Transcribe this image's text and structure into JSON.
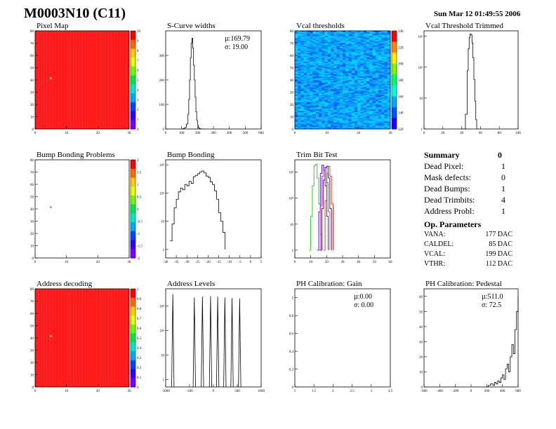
{
  "header": {
    "title": "M0003N10 (C11)",
    "timestamp": "Sun Mar 12 01:49:55 2006"
  },
  "palette": {
    "axis": "#000000",
    "frame": "#000000",
    "histogram": "#000000",
    "red_map": "#ff1a1a"
  },
  "colorbar": [
    "#ff0000",
    "#ff6a00",
    "#ffcc00",
    "#e6ff00",
    "#66ff00",
    "#00e64d",
    "#00e6c8",
    "#00aaff",
    "#0044ff",
    "#3300ff",
    "#7a00ff"
  ],
  "vcal_colorbar": [
    "#ff0000",
    "#ff8800",
    "#ffee00",
    "#77ff00",
    "#00ff66",
    "#00ffdd",
    "#00aaff",
    "#0050ff",
    "#2200ff"
  ],
  "summary": {
    "title": "Summary",
    "total": "0",
    "rows": [
      {
        "label": "Dead Pixel:",
        "value": "1"
      },
      {
        "label": "Mask defects:",
        "value": "0"
      },
      {
        "label": "Dead Bumps:",
        "value": "1"
      },
      {
        "label": "Dead Trimbits:",
        "value": "4"
      },
      {
        "label": "Address Probl:",
        "value": "1"
      }
    ],
    "op_title": "Op. Parameters",
    "op_rows": [
      {
        "label": "VANA:",
        "value": "177 DAC"
      },
      {
        "label": "CALDEL:",
        "value": "85 DAC"
      },
      {
        "label": "VCAL:",
        "value": "199 DAC"
      },
      {
        "label": "VTHR:",
        "value": "112 DAC"
      }
    ]
  },
  "chart_data": [
    {
      "id": "pixel_map",
      "type": "heatmap",
      "title": "Pixel Map",
      "xlim": [
        0,
        32
      ],
      "ylim": [
        0,
        80
      ],
      "xticks": [
        "0",
        "10",
        "20",
        "30"
      ],
      "yticks": [
        "0",
        "10",
        "20",
        "30",
        "40",
        "50",
        "60",
        "70",
        "80"
      ],
      "zticks": [
        "0",
        "1",
        "2",
        "3",
        "4",
        "5",
        "6",
        "7",
        "8",
        "9",
        "10"
      ],
      "fill": "uniform red (10)",
      "dead_pixel": [
        5,
        42
      ]
    },
    {
      "id": "scurve_widths",
      "type": "line",
      "title": "S-Curve widths",
      "xlim": [
        0,
        600
      ],
      "ylim": [
        0,
        400
      ],
      "xticks": [
        "0",
        "100",
        "200",
        "300",
        "400",
        "500",
        "600"
      ],
      "yticks": [
        "0",
        "100",
        "200",
        "300"
      ],
      "stats": [
        "µ:169.79",
        "σ: 19.00"
      ],
      "x": [
        100,
        110,
        120,
        130,
        140,
        145,
        150,
        155,
        160,
        165,
        170,
        175,
        180,
        185,
        190,
        195,
        200,
        205,
        210,
        215,
        220,
        230,
        240
      ],
      "y": [
        0,
        2,
        6,
        20,
        60,
        120,
        200,
        290,
        350,
        370,
        330,
        260,
        200,
        130,
        70,
        35,
        15,
        6,
        3,
        1,
        0,
        0,
        0
      ]
    },
    {
      "id": "vcal_thresholds",
      "type": "heatmap",
      "title": "Vcal thresholds",
      "xlim": [
        0,
        32
      ],
      "ylim": [
        0,
        80
      ],
      "xticks": [
        "0",
        "10",
        "20",
        "30"
      ],
      "yticks": [
        "0",
        "10",
        "20",
        "30",
        "40",
        "50",
        "60",
        "70",
        "80"
      ],
      "zticks": [
        "120",
        "140",
        "160",
        "180",
        "200",
        "220",
        "240"
      ]
    },
    {
      "id": "vcal_trimmed",
      "type": "line",
      "title": "Vcal Threshold Trimmed",
      "xlim": [
        0,
        100
      ],
      "ylim_log": [
        1,
        1500
      ],
      "xticks": [
        "0",
        "20",
        "40",
        "60",
        "80",
        "100"
      ],
      "yticks": [
        "1",
        "10",
        "10²",
        "10³"
      ],
      "x": [
        40,
        42,
        44,
        46,
        47,
        48,
        49,
        50,
        51,
        52,
        53,
        54,
        55,
        56,
        58
      ],
      "y": [
        0,
        0,
        3,
        80,
        400,
        900,
        1200,
        1100,
        600,
        200,
        40,
        8,
        2,
        0,
        0
      ]
    },
    {
      "id": "bump_bonding_problems",
      "type": "heatmap",
      "title": "Bump Bonding Problems",
      "xlim": [
        0,
        32
      ],
      "ylim": [
        0,
        80
      ],
      "xticks": [
        "0",
        "10",
        "20",
        "30"
      ],
      "yticks": [
        "0",
        "10",
        "20",
        "30",
        "40",
        "50",
        "60",
        "70",
        "80"
      ],
      "zticks": [
        "-2",
        "-1.5",
        "-1",
        "-0.5",
        "0",
        "0.5",
        "1",
        "1.5",
        "2"
      ],
      "problem_pixel": [
        5,
        42
      ]
    },
    {
      "id": "bump_bonding",
      "type": "line",
      "title": "Bump Bonding",
      "xlim": [
        -40,
        5
      ],
      "ylim_log": [
        0.5,
        1500
      ],
      "xticks": [
        "-40",
        "-35",
        "-30",
        "-25",
        "-20",
        "-15",
        "-10",
        "-5",
        "0",
        "5"
      ],
      "yticks": [
        "1",
        "10",
        "10²",
        "10³"
      ],
      "x": [
        -38,
        -37,
        -36,
        -35,
        -34,
        -33,
        -32,
        -31,
        -30,
        -29,
        -28,
        -27,
        -26,
        -25,
        -24,
        -23,
        -22,
        -21,
        -20,
        -19,
        -18,
        -17,
        -16,
        -15,
        -14,
        -13,
        -12
      ],
      "y": [
        2,
        8,
        30,
        60,
        110,
        150,
        130,
        200,
        180,
        260,
        220,
        380,
        420,
        480,
        560,
        600,
        520,
        400,
        360,
        250,
        200,
        120,
        60,
        20,
        10,
        4,
        1
      ]
    },
    {
      "id": "trim_bit_test",
      "type": "line",
      "title": "Trim Bit Test",
      "xlim": [
        0,
        60
      ],
      "ylim_log": [
        0.5,
        3000
      ],
      "xticks": [
        "0",
        "10",
        "20",
        "30",
        "40",
        "50",
        "60"
      ],
      "yticks": [
        "1",
        "10",
        "10²",
        "10³"
      ],
      "series": [
        {
          "color": "#00c000",
          "x": [
            9,
            10,
            11,
            12,
            13,
            14,
            15,
            16,
            17
          ],
          "y": [
            1,
            20,
            300,
            1800,
            2000,
            600,
            60,
            4,
            1
          ]
        },
        {
          "color": "#0000ff",
          "x": [
            14,
            15,
            16,
            17,
            18,
            19,
            20,
            21
          ],
          "y": [
            1,
            30,
            900,
            1900,
            1200,
            300,
            20,
            1
          ]
        },
        {
          "color": "#ff00ff",
          "x": [
            15,
            16,
            17,
            18,
            19,
            20,
            21,
            22
          ],
          "y": [
            1,
            50,
            700,
            1600,
            1500,
            400,
            30,
            1
          ]
        },
        {
          "color": "#000000",
          "x": [
            16,
            17,
            18,
            19,
            20,
            21,
            22,
            23
          ],
          "y": [
            1,
            40,
            500,
            1500,
            1700,
            600,
            40,
            1
          ]
        },
        {
          "color": "#ff0000",
          "x": [
            18,
            19,
            20,
            21,
            22,
            23,
            24
          ],
          "y": [
            1,
            80,
            900,
            1700,
            700,
            60,
            1
          ]
        }
      ]
    },
    {
      "id": "address_decoding",
      "type": "heatmap",
      "title": "Address decoding",
      "xlim": [
        0,
        32
      ],
      "ylim": [
        0,
        80
      ],
      "xticks": [
        "0",
        "10",
        "20",
        "30"
      ],
      "yticks": [
        "0",
        "10",
        "20",
        "30",
        "40",
        "50",
        "60",
        "70",
        "80"
      ],
      "zticks": [
        "0",
        "0.1",
        "0.2",
        "0.3",
        "0.4",
        "0.5",
        "0.6",
        "0.7",
        "0.8",
        "0.9",
        "1"
      ],
      "fill": "uniform red (1)",
      "problem_pixel": [
        5,
        42
      ]
    },
    {
      "id": "address_levels",
      "type": "line",
      "title": "Address Levels",
      "xlim": [
        -1000,
        1000
      ],
      "ylim_log": [
        0.5,
        5000
      ],
      "xticks": [
        "-1000",
        "-500",
        "0",
        "500",
        "1000"
      ],
      "yticks": [
        "1",
        "10",
        "10²",
        "10³"
      ],
      "peaks": [
        {
          "x": -850,
          "h": 3000
        },
        {
          "x": -400,
          "h": 2200
        },
        {
          "x": -230,
          "h": 2400
        },
        {
          "x": -60,
          "h": 2500
        },
        {
          "x": 90,
          "h": 2400
        },
        {
          "x": 240,
          "h": 2200
        },
        {
          "x": 390,
          "h": 2100
        },
        {
          "x": 550,
          "h": 2000
        }
      ]
    },
    {
      "id": "ph_gain",
      "type": "line",
      "title": "PH Calibration: Gain",
      "xlim": [
        1,
        3.5
      ],
      "ylim": [
        0,
        1.1
      ],
      "xticks": [
        "1",
        "1.5",
        "2",
        "2.5",
        "3",
        "3.5"
      ],
      "yticks": [
        "0",
        "0.2",
        "0.4",
        "0.6",
        "0.8",
        "1"
      ],
      "stats": [
        "µ:0.00",
        "σ: 0.00"
      ]
    },
    {
      "id": "ph_pedestal",
      "type": "line",
      "title": "PH Calibration: Pedestal",
      "xlim": [
        -600,
        600
      ],
      "ylim": [
        0,
        65
      ],
      "xticks": [
        "-600",
        "-400",
        "-200",
        "0",
        "200",
        "400",
        "600"
      ],
      "yticks": [
        "0",
        "10",
        "20",
        "30",
        "40",
        "50",
        "60"
      ],
      "stats": [
        "µ:511.0",
        "σ: 72.5"
      ],
      "x": [
        190,
        220,
        250,
        280,
        300,
        320,
        340,
        360,
        380,
        400,
        420,
        440,
        460,
        480,
        500,
        520,
        540,
        560,
        580,
        600
      ],
      "y": [
        0,
        1,
        2,
        1,
        3,
        2,
        4,
        3,
        6,
        8,
        5,
        12,
        15,
        10,
        20,
        28,
        22,
        38,
        50,
        60
      ]
    }
  ]
}
